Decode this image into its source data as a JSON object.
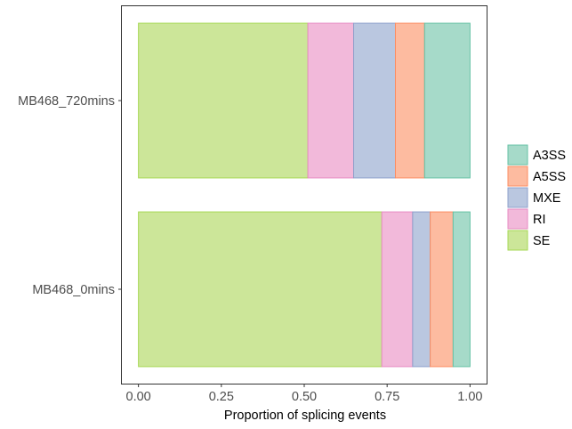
{
  "chart_data": {
    "type": "bar",
    "orientation": "horizontal",
    "stacked": true,
    "categories": [
      "MB468_720mins",
      "MB468_0mins"
    ],
    "series": [
      {
        "name": "SE",
        "values": [
          0.511,
          0.734
        ],
        "fill": "#CCE699",
        "stroke": "#A6D854"
      },
      {
        "name": "RI",
        "values": [
          0.138,
          0.093
        ],
        "fill": "#F2B9DA",
        "stroke": "#E78AC3"
      },
      {
        "name": "MXE",
        "values": [
          0.126,
          0.053
        ],
        "fill": "#BAC7E0",
        "stroke": "#8DA0CB"
      },
      {
        "name": "A5SS",
        "values": [
          0.088,
          0.069
        ],
        "fill": "#FDBBA0",
        "stroke": "#FC8D62"
      },
      {
        "name": "A3SS",
        "values": [
          0.137,
          0.051
        ],
        "fill": "#A6DAC9",
        "stroke": "#66C2A5"
      }
    ],
    "legend_order": [
      "A3SS",
      "A5SS",
      "MXE",
      "RI",
      "SE"
    ],
    "xlim": [
      -0.05,
      1.05
    ],
    "xticks": [
      0.0,
      0.25,
      0.5,
      0.75,
      1.0
    ],
    "xtick_labels": [
      "0.00",
      "0.25",
      "0.50",
      "0.75",
      "1.00"
    ],
    "xlabel": "Proportion of splicing events",
    "ylabel": "",
    "title": "",
    "grid": false,
    "legend_position": "right"
  }
}
